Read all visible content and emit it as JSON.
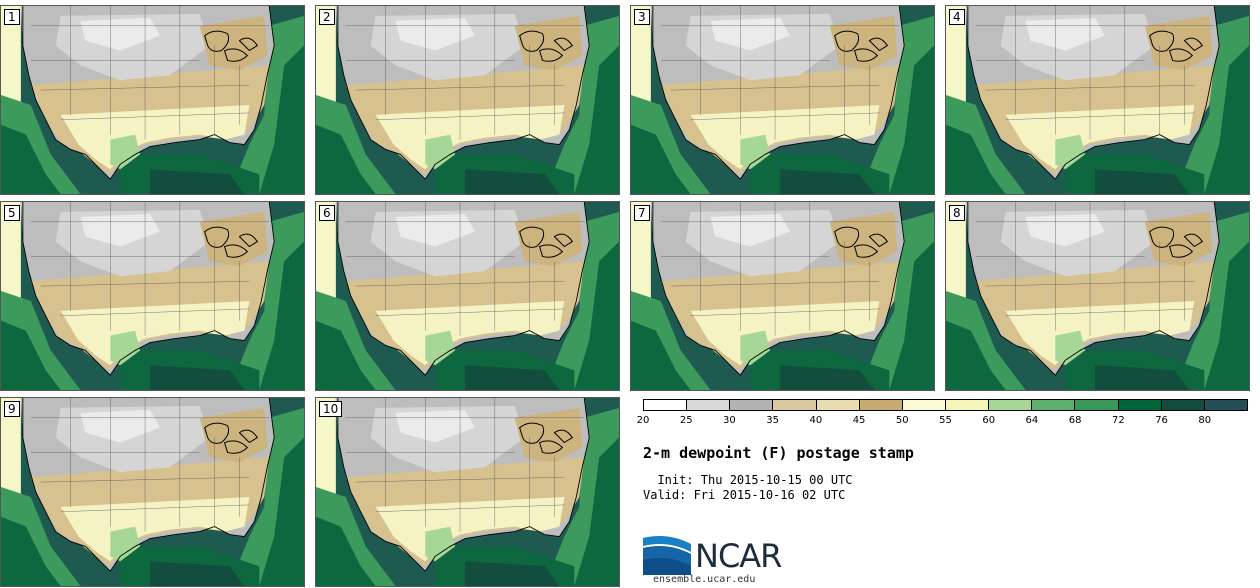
{
  "title": "2-m dewpoint (F) postage stamp",
  "init": "  Init: Thu 2015-10-15 00 UTC",
  "valid": "Valid: Fri 2015-10-16 02 UTC",
  "logo_text": "NCAR",
  "website": "ensemble.ucar.edu",
  "panels": [
    "1",
    "2",
    "3",
    "4",
    "5",
    "6",
    "7",
    "8",
    "9",
    "10"
  ],
  "legend": {
    "ticks": [
      "20",
      "25",
      "30",
      "35",
      "40",
      "45",
      "50",
      "55",
      "60",
      "64",
      "68",
      "72",
      "76",
      "80"
    ],
    "colors": [
      "#ffffff",
      "#d9d9d9",
      "#b3b3b3",
      "#d8c9a1",
      "#e8dcb0",
      "#c7aa72",
      "#fbfad2",
      "#f4f5b7",
      "#a6d796",
      "#5eb06d",
      "#37985a",
      "#00653a",
      "#124d3d",
      "#244f56"
    ]
  }
}
